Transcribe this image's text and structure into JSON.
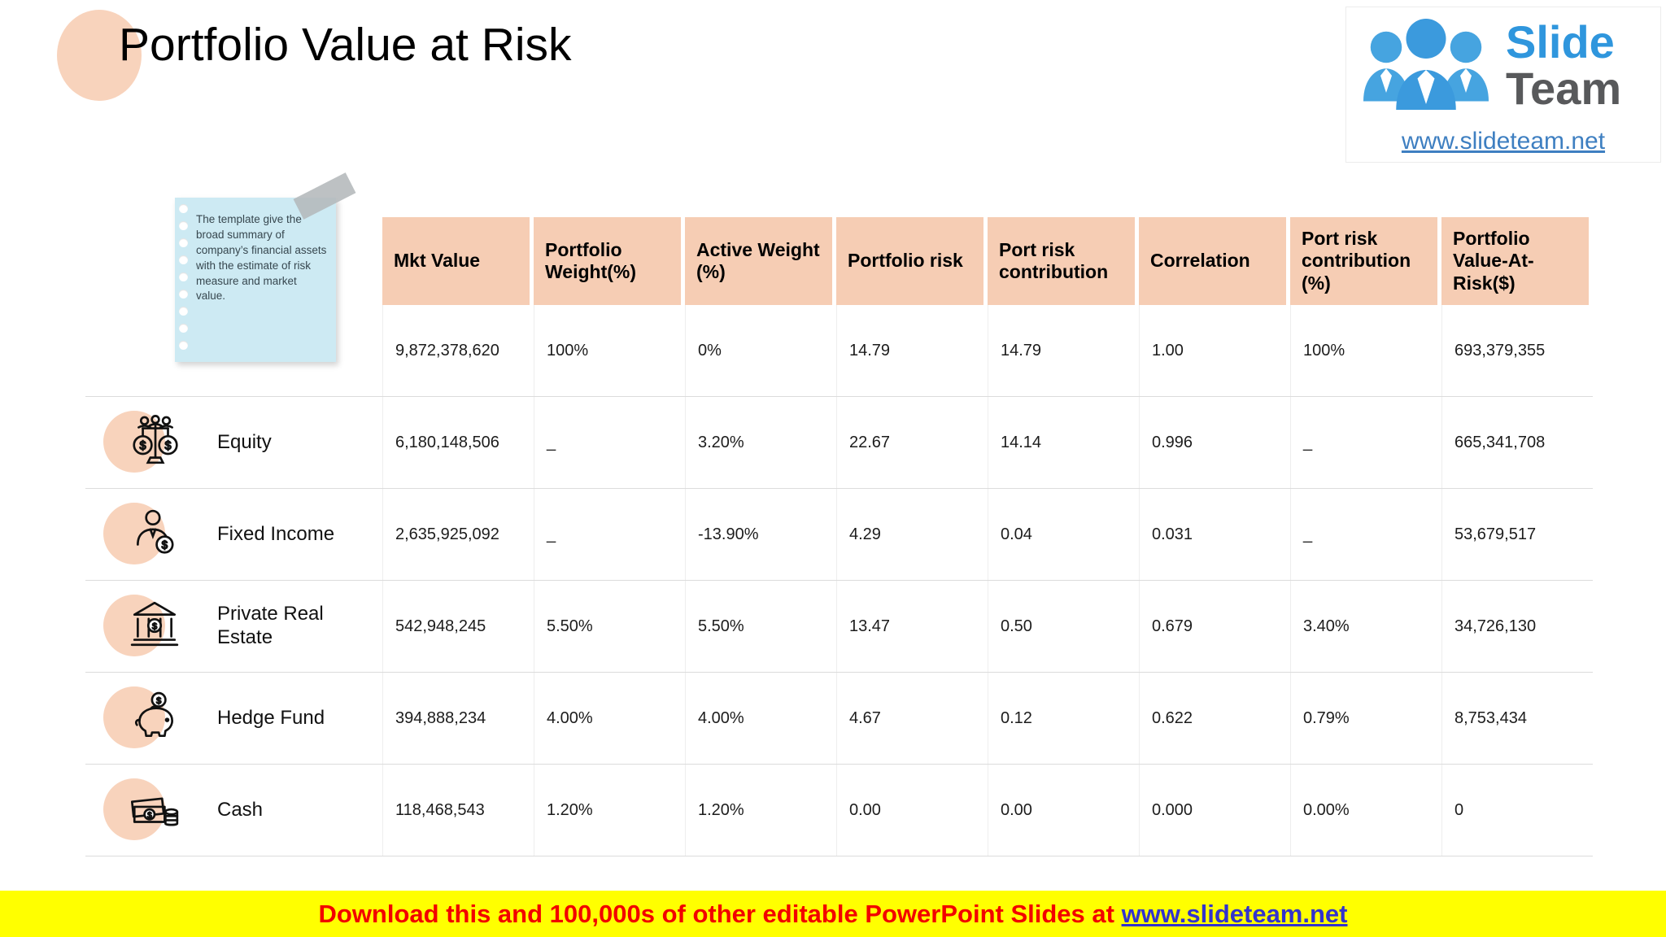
{
  "page": {
    "title": "Portfolio Value at Risk"
  },
  "logo": {
    "brand_top": "Slide",
    "brand_bottom": "Team",
    "url": "www.slideteam.net",
    "people_icon": "team-people-icon",
    "brand_blue": "#2f96dd",
    "brand_gray": "#58595b"
  },
  "note": {
    "text": "The template give the broad summary of company’s financial assets with the estimate of risk measure and market value.",
    "bg_color": "#cdeaf3"
  },
  "table": {
    "header_bg": "#f6cdb4",
    "accent_circle": "#f8d3bc",
    "columns": [
      "Mkt Value",
      "Portfolio Weight(%)",
      "Active Weight (%)",
      "Portfolio risk",
      "Port risk contribution",
      "Correlation",
      "Port risk contribution (%)",
      "Portfolio Value-At-Risk($)"
    ],
    "rows": [
      {
        "label": "",
        "icon": "",
        "values": [
          "9,872,378,620",
          "100%",
          "0%",
          "14.79",
          "14.79",
          "1.00",
          "100%",
          "693,379,355"
        ]
      },
      {
        "label": "Equity",
        "icon": "equity-scale-icon",
        "values": [
          "6,180,148,506",
          "_",
          "3.20%",
          "22.67",
          "14.14",
          "0.996",
          "_",
          "665,341,708"
        ]
      },
      {
        "label": "Fixed Income",
        "icon": "fixed-income-person-icon",
        "values": [
          "2,635,925,092",
          "_",
          "-13.90%",
          "4.29",
          "0.04",
          "0.031",
          "_",
          "53,679,517"
        ]
      },
      {
        "label": "Private Real Estate",
        "icon": "real-estate-bank-icon",
        "values": [
          "542,948,245",
          "5.50%",
          "5.50%",
          "13.47",
          "0.50",
          "0.679",
          "3.40%",
          "34,726,130"
        ]
      },
      {
        "label": "Hedge Fund",
        "icon": "hedge-fund-piggy-icon",
        "values": [
          "394,888,234",
          "4.00%",
          "4.00%",
          "4.67",
          "0.12",
          "0.622",
          "0.79%",
          "8,753,434"
        ]
      },
      {
        "label": "Cash",
        "icon": "cash-money-icon",
        "values": [
          "118,468,543",
          "1.20%",
          "1.20%",
          "0.00",
          "0.00",
          "0.000",
          "0.00%",
          "0"
        ]
      }
    ]
  },
  "footer": {
    "text": "Download this and 100,000s of other editable PowerPoint Slides at ",
    "link": "www.slideteam.net",
    "bg_color": "#ffff00",
    "text_color": "#f20000",
    "link_color": "#3333cc"
  }
}
